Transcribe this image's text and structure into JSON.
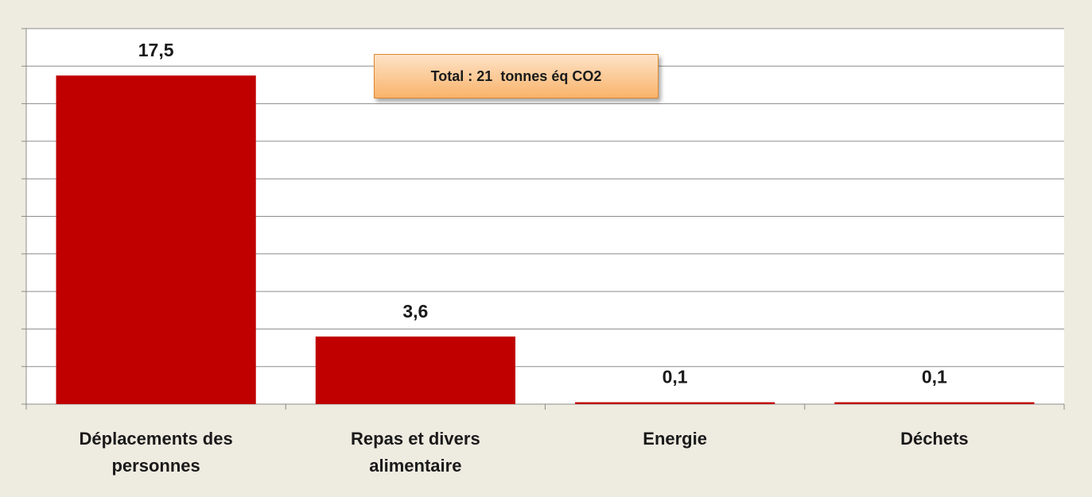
{
  "chart_data": {
    "type": "bar",
    "annotation": "Total : 21  tonnes éq CO2",
    "categories": [
      "Déplacements des personnes",
      "Repas et divers alimentaire",
      "Energie",
      "Déchets"
    ],
    "values": [
      17.5,
      3.6,
      0.1,
      0.1
    ],
    "value_labels": [
      "17,5",
      "3,6",
      "0,1",
      "0,1"
    ],
    "color": "#c00000",
    "ylim": [
      0,
      20
    ],
    "yticks": [
      0,
      2,
      4,
      6,
      8,
      10,
      12,
      14,
      16,
      18,
      20
    ],
    "grid": true
  }
}
